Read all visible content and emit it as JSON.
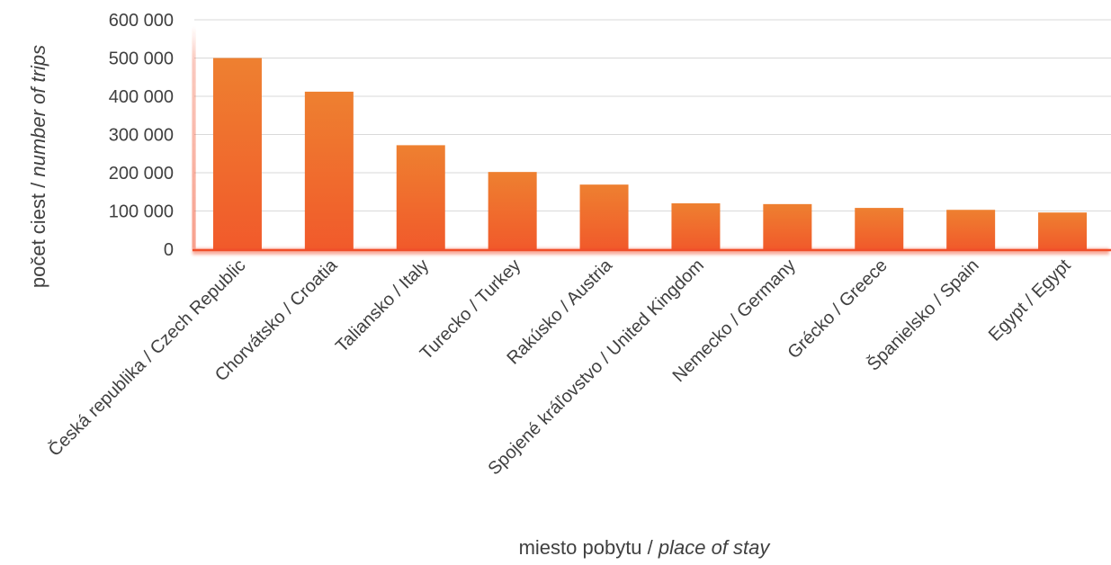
{
  "chart_data": {
    "type": "bar",
    "categories": [
      "Česká republika / Czech Republic",
      "Chorvátsko / Croatia",
      "Taliansko / Italy",
      "Turecko / Turkey",
      "Rakúsko  / Austria",
      "Spojené kráľovstvo / United Kingdom",
      "Nemecko / Germany",
      "Grécko / Greece",
      "Španielsko / Spain",
      "Egypt / Egypt"
    ],
    "values": [
      500000,
      412000,
      272000,
      202000,
      169000,
      120000,
      118000,
      108000,
      103000,
      96000
    ],
    "ylim": [
      0,
      600000
    ],
    "yticks": [
      "0",
      "100 000",
      "200 000",
      "300 000",
      "400 000",
      "500 000",
      "600 000"
    ],
    "xlabel": {
      "main": "miesto pobytu / ",
      "italic": "place of stay"
    },
    "ylabel": {
      "main": "počet ciest / ",
      "italic": "number of trips"
    },
    "grid": true,
    "colors": {
      "bar_top": "#ee8030",
      "bar_bottom": "#f15a2b",
      "grid": "#d9d9d9",
      "axis_line": "#f04e2a",
      "text": "#404040"
    }
  }
}
